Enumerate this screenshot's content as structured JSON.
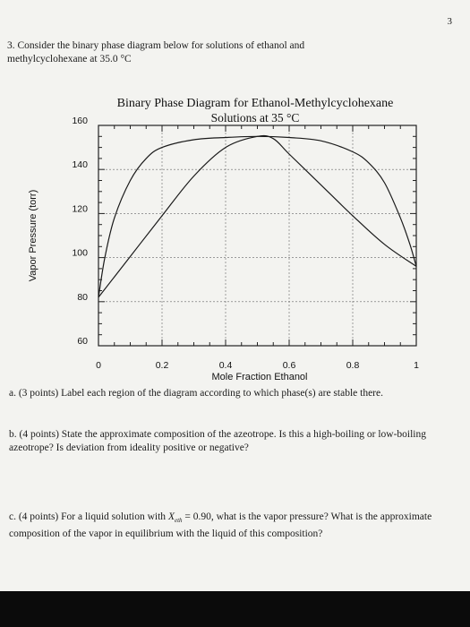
{
  "page_number": "3",
  "question": {
    "line1": "3.  Consider the binary phase diagram below for solutions of ethanol and",
    "line2": "methylcyclohexane at 35.0 °C"
  },
  "chart_data": {
    "type": "line",
    "title": "Binary Phase Diagram for Ethanol-Methylcyclohexane",
    "subtitle": "Solutions at 35 °C",
    "xlabel": "Mole Fraction Ethanol",
    "ylabel": "Vapor Pressure (torr)",
    "xlim": [
      0,
      1
    ],
    "ylim": [
      60,
      160
    ],
    "xticks": [
      "0",
      "0.2",
      "0.4",
      "0.6",
      "0.8",
      "1"
    ],
    "yticks": [
      "60",
      "80",
      "100",
      "120",
      "140",
      "160"
    ],
    "grid": true,
    "series": [
      {
        "x": [
          0,
          0.02,
          0.05,
          0.1,
          0.15,
          0.2,
          0.3,
          0.4,
          0.5,
          0.6,
          0.7,
          0.8,
          0.85,
          0.9,
          0.95,
          0.98,
          1.0
        ],
        "y": [
          82,
          100,
          118,
          135,
          145,
          150,
          153.5,
          154.5,
          155,
          154.5,
          153,
          148,
          143,
          134,
          118,
          106,
          96
        ]
      },
      {
        "x": [
          0,
          0.1,
          0.2,
          0.3,
          0.4,
          0.5,
          0.55,
          0.6,
          0.7,
          0.8,
          0.9,
          1.0
        ],
        "y": [
          82,
          100.5,
          119,
          137,
          150,
          155,
          154,
          147,
          133,
          119,
          106,
          96
        ]
      }
    ]
  },
  "part_a": {
    "text": "a. (3 points)  Label each region of the diagram according to which phase(s) are stable there."
  },
  "part_b": {
    "text": "b. (4 points)  State the approximate composition of the azeotrope.  Is this a high-boiling or low-boiling azeotrope?  Is deviation from ideality positive or negative?"
  },
  "part_c": {
    "before": "c. (4 points)  For a liquid solution with",
    "var": "X",
    "sub": "eth",
    "after": "= 0.90, what is the vapor pressure?  What is the approximate composition of the vapor in equilibrium with the liquid of this composition?"
  }
}
